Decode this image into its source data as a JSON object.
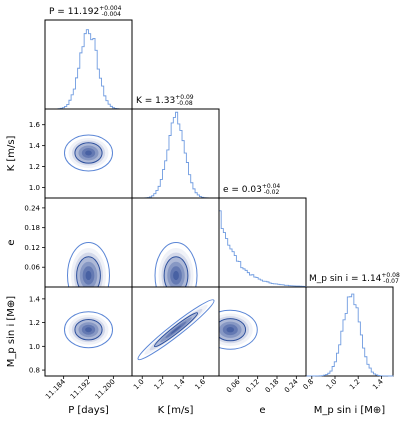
{
  "chart_data": {
    "type": "corner",
    "params": [
      {
        "name": "P",
        "axis_label": "P [days]",
        "median": 11.192,
        "err_plus": 0.004,
        "err_minus": 0.004,
        "title_prefix": "P = ",
        "title_value": "11.192",
        "title_sup": "+0.004",
        "title_sub": "-0.004",
        "range": [
          11.178,
          11.206
        ],
        "ticks": [
          "11.184",
          "11.192",
          "11.200"
        ],
        "tick_values": [
          11.184,
          11.192,
          11.2
        ],
        "sigma": 0.0028
      },
      {
        "name": "K",
        "axis_label": "K [m/s]",
        "median": 1.33,
        "err_plus": 0.09,
        "err_minus": 0.08,
        "title_prefix": "K = ",
        "title_value": "1.33",
        "title_sup": "+0.09",
        "title_sub": "-0.08",
        "range": [
          0.9,
          1.75
        ],
        "ticks": [
          "1.0",
          "1.2",
          "1.4",
          "1.6"
        ],
        "tick_values": [
          1.0,
          1.2,
          1.4,
          1.6
        ],
        "sigma": 0.085
      },
      {
        "name": "e",
        "axis_label": "e",
        "median": 0.03,
        "err_plus": 0.04,
        "err_minus": 0.02,
        "title_prefix": "e = ",
        "title_value": "0.03",
        "title_sup": "+0.04",
        "title_sub": "-0.02",
        "range": [
          0.0,
          0.27
        ],
        "ticks": [
          "0.06",
          "0.12",
          "0.18",
          "0.24"
        ],
        "tick_values": [
          0.06,
          0.12,
          0.18,
          0.24
        ],
        "sigma": 0.04
      },
      {
        "name": "Mp sin i",
        "axis_label": "M_p sin i [M⊕]",
        "median": 1.14,
        "err_plus": 0.08,
        "err_minus": 0.07,
        "title_prefix": "M_p sin i = ",
        "title_value": "1.14",
        "title_sup": "+0.08",
        "title_sub": "-0.07",
        "range": [
          0.75,
          1.5
        ],
        "ticks": [
          "0.8",
          "1.0",
          "1.2",
          "1.4"
        ],
        "tick_values": [
          0.8,
          1.0,
          1.2,
          1.4
        ],
        "sigma": 0.075
      }
    ],
    "y_ticks": [
      null,
      {
        "labels": [
          "1.0",
          "1.2",
          "1.4",
          "1.6"
        ],
        "values": [
          1.0,
          1.2,
          1.4,
          1.6
        ]
      },
      {
        "labels": [
          "0.06",
          "0.12",
          "0.18",
          "0.24"
        ],
        "values": [
          0.06,
          0.12,
          0.18,
          0.24
        ]
      },
      {
        "labels": [
          "0.8",
          "1.0",
          "1.2",
          "1.4"
        ],
        "values": [
          0.8,
          1.0,
          1.2,
          1.4
        ]
      }
    ],
    "y_labels": [
      "",
      "K [m/s]",
      "e",
      "M_p sin i [M⊕]"
    ],
    "correlation_K_Mp": 0.97,
    "colors": {
      "line": "#6f9be0",
      "fill_dark": "#1f3f8f",
      "fill_light": "#dbe6f7",
      "contour": "#5b86d6",
      "contour_dark": "#2c4f9c",
      "axis": "#000000"
    }
  }
}
